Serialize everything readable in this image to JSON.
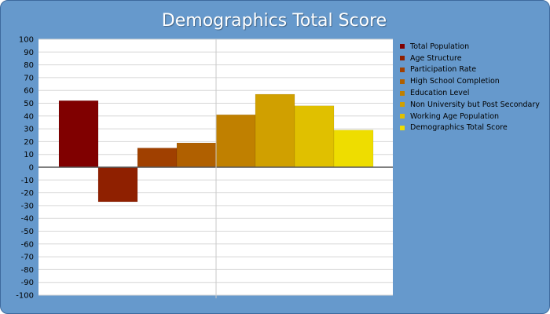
{
  "chart_data": {
    "type": "bar",
    "title": "Demographics Total Score",
    "ylim": [
      -100,
      100
    ],
    "ytick_step": 10,
    "grid": true,
    "legend_placement": "right",
    "categories": [
      "Total Population",
      "Age Structure",
      "Participation Rate",
      "High School Completion",
      "Education Level",
      "Non University but Post Secondary",
      "Working Age Population",
      "Demographics Total Score"
    ],
    "values": [
      52,
      -27,
      15,
      19,
      41,
      57,
      48,
      29
    ],
    "colors": [
      "#800000",
      "#8f2000",
      "#a04000",
      "#b06000",
      "#c08000",
      "#d0a000",
      "#e0c000",
      "#eedd00"
    ]
  }
}
